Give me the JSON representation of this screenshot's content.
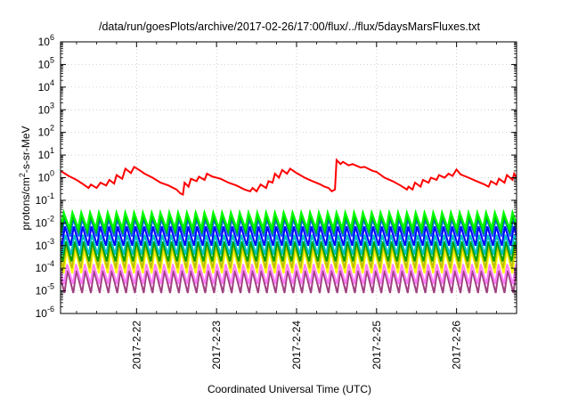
{
  "chart_data": {
    "type": "line",
    "title": "/data/run/goesPlots/archive/2017-02-26/17:00/flux/../flux/5daysMarsFluxes.txt",
    "xlabel": "Coordinated Universal Time (UTC)",
    "ylabel_parts": [
      "protons/cm",
      "2",
      "-s-sr-MeV"
    ],
    "y_scale": "log",
    "ylim_exp": [
      -6,
      6
    ],
    "y_ticks": [
      {
        "base": "10",
        "exp": "-6"
      },
      {
        "base": "10",
        "exp": "-5"
      },
      {
        "base": "10",
        "exp": "-4"
      },
      {
        "base": "10",
        "exp": "-3"
      },
      {
        "base": "10",
        "exp": "-2"
      },
      {
        "base": "10",
        "exp": "-1"
      },
      {
        "base": "10",
        "exp": "0"
      },
      {
        "base": "10",
        "exp": "1"
      },
      {
        "base": "10",
        "exp": "2"
      },
      {
        "base": "10",
        "exp": "3"
      },
      {
        "base": "10",
        "exp": "4"
      },
      {
        "base": "10",
        "exp": "5"
      },
      {
        "base": "10",
        "exp": "6"
      }
    ],
    "xlim_days": [
      21.05,
      26.75
    ],
    "x_ticks": [
      {
        "label": "2017-2-22",
        "day": 22
      },
      {
        "label": "2017-2-23",
        "day": 23
      },
      {
        "label": "2017-2-24",
        "day": 24
      },
      {
        "label": "2017-2-25",
        "day": 25
      },
      {
        "label": "2017-2-26",
        "day": 26
      }
    ],
    "grid": true,
    "red_series": {
      "color": "#ff0000",
      "points": [
        [
          21.05,
          2.0
        ],
        [
          21.15,
          1.2
        ],
        [
          21.25,
          0.8
        ],
        [
          21.32,
          0.55
        ],
        [
          21.4,
          0.35
        ],
        [
          21.43,
          0.5
        ],
        [
          21.5,
          0.35
        ],
        [
          21.55,
          0.6
        ],
        [
          21.62,
          0.45
        ],
        [
          21.66,
          0.8
        ],
        [
          21.72,
          0.55
        ],
        [
          21.75,
          1.3
        ],
        [
          21.82,
          0.9
        ],
        [
          21.86,
          2.5
        ],
        [
          21.93,
          1.6
        ],
        [
          21.97,
          3.0
        ],
        [
          22.05,
          2.0
        ],
        [
          22.1,
          1.5
        ],
        [
          22.2,
          1.0
        ],
        [
          22.3,
          0.6
        ],
        [
          22.4,
          0.45
        ],
        [
          22.5,
          0.3
        ],
        [
          22.55,
          0.2
        ],
        [
          22.58,
          0.18
        ],
        [
          22.6,
          0.6
        ],
        [
          22.65,
          0.4
        ],
        [
          22.68,
          0.9
        ],
        [
          22.75,
          0.7
        ],
        [
          22.78,
          1.1
        ],
        [
          22.85,
          0.8
        ],
        [
          22.88,
          1.5
        ],
        [
          22.95,
          1.1
        ],
        [
          23.05,
          0.9
        ],
        [
          23.15,
          0.6
        ],
        [
          23.25,
          0.45
        ],
        [
          23.35,
          0.3
        ],
        [
          23.42,
          0.25
        ],
        [
          23.45,
          0.35
        ],
        [
          23.5,
          0.25
        ],
        [
          23.55,
          0.5
        ],
        [
          23.62,
          0.35
        ],
        [
          23.65,
          0.7
        ],
        [
          23.7,
          0.6
        ],
        [
          23.73,
          1.5
        ],
        [
          23.78,
          1.0
        ],
        [
          23.82,
          2.2
        ],
        [
          23.88,
          1.5
        ],
        [
          23.92,
          2.5
        ],
        [
          24.0,
          1.6
        ],
        [
          24.1,
          1.0
        ],
        [
          24.2,
          0.7
        ],
        [
          24.3,
          0.5
        ],
        [
          24.35,
          0.4
        ],
        [
          24.4,
          0.35
        ],
        [
          24.44,
          0.25
        ],
        [
          24.48,
          0.3
        ],
        [
          24.5,
          6.0
        ],
        [
          24.55,
          4.0
        ],
        [
          24.58,
          5.0
        ],
        [
          24.65,
          3.5
        ],
        [
          24.7,
          4.0
        ],
        [
          24.8,
          2.8
        ],
        [
          24.85,
          3.0
        ],
        [
          24.95,
          2.0
        ],
        [
          25.0,
          1.8
        ],
        [
          25.1,
          1.0
        ],
        [
          25.2,
          0.7
        ],
        [
          25.3,
          0.45
        ],
        [
          25.38,
          0.3
        ],
        [
          25.4,
          0.4
        ],
        [
          25.45,
          0.3
        ],
        [
          25.48,
          0.6
        ],
        [
          25.55,
          0.4
        ],
        [
          25.58,
          0.8
        ],
        [
          25.65,
          0.6
        ],
        [
          25.68,
          1.0
        ],
        [
          25.75,
          0.8
        ],
        [
          25.78,
          1.3
        ],
        [
          25.85,
          1.0
        ],
        [
          25.9,
          1.5
        ],
        [
          25.95,
          1.2
        ],
        [
          26.0,
          2.3
        ],
        [
          26.05,
          1.4
        ],
        [
          26.15,
          1.0
        ],
        [
          26.25,
          0.7
        ],
        [
          26.35,
          0.5
        ],
        [
          26.4,
          0.4
        ],
        [
          26.43,
          0.7
        ],
        [
          26.5,
          0.5
        ],
        [
          26.53,
          0.9
        ],
        [
          26.6,
          0.6
        ],
        [
          26.63,
          1.3
        ],
        [
          26.7,
          0.8
        ],
        [
          26.72,
          1.5
        ],
        [
          26.75,
          1.0
        ]
      ]
    },
    "sawtooth_series": [
      {
        "color": "#00ff00",
        "low": 0.006,
        "high": 0.03,
        "phase": 0.0
      },
      {
        "color": "#00c000",
        "low": 0.004,
        "high": 0.02,
        "phase": 0.05
      },
      {
        "color": "#0060ff",
        "low": 0.0025,
        "high": 0.015,
        "phase": 0.1
      },
      {
        "color": "#0000ff",
        "low": 0.001,
        "high": 0.007,
        "phase": 0.15
      },
      {
        "color": "#00c0c0",
        "low": 0.0004,
        "high": 0.003,
        "phase": 0.2
      },
      {
        "color": "#00a000",
        "low": 0.0002,
        "high": 0.0015,
        "phase": 0.25
      },
      {
        "color": "#c0c000",
        "low": 0.0001,
        "high": 0.001,
        "phase": 0.3
      },
      {
        "color": "#ffff00",
        "low": 6e-05,
        "high": 0.0006,
        "phase": 0.35
      },
      {
        "color": "#ff80ff",
        "low": 2e-05,
        "high": 0.00015,
        "phase": 0.4
      },
      {
        "color": "#a04080",
        "low": 8e-06,
        "high": 8e-05,
        "phase": 0.45
      }
    ],
    "sawtooth_period_days": 0.11
  }
}
